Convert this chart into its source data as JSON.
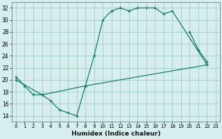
{
  "xlabel": "Humidex (Indice chaleur)",
  "bg_color": "#d7eeee",
  "grid_color": "#a8d0d0",
  "line_color": "#1a7a6a",
  "xlim": [
    -0.5,
    23.5
  ],
  "ylim": [
    13,
    33
  ],
  "yticks": [
    14,
    16,
    18,
    20,
    22,
    24,
    26,
    28,
    30,
    32
  ],
  "xticks": [
    0,
    1,
    2,
    3,
    4,
    5,
    6,
    7,
    8,
    9,
    10,
    11,
    12,
    13,
    14,
    15,
    16,
    17,
    18,
    19,
    20,
    21,
    22,
    23
  ],
  "lines": [
    {
      "x": [
        0,
        1,
        2,
        3,
        4,
        5,
        6,
        7,
        8,
        9,
        10,
        11,
        12,
        13,
        14,
        15,
        16,
        17,
        18,
        22
      ],
      "y": [
        20.5,
        19.0,
        17.5,
        17.5,
        16.5,
        15.0,
        14.5,
        14.0,
        19.0,
        24.0,
        30.0,
        31.5,
        32.0,
        31.5,
        32.0,
        32.0,
        32.0,
        31.0,
        31.5,
        22.5
      ]
    },
    {
      "x": [
        20,
        21,
        22
      ],
      "y": [
        28.0,
        25.0,
        23.0
      ]
    },
    {
      "x": [
        0,
        3,
        8,
        22
      ],
      "y": [
        20.0,
        17.5,
        19.0,
        22.5
      ]
    }
  ]
}
